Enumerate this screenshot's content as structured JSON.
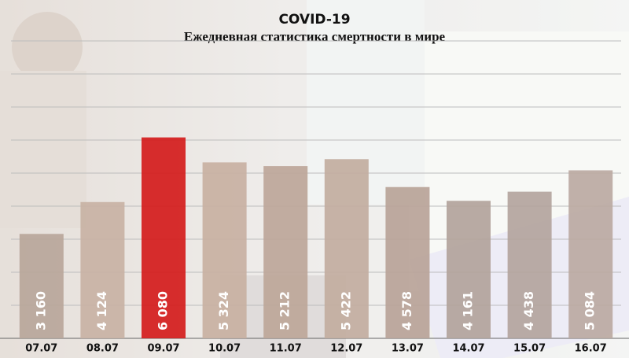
{
  "chart_data": {
    "type": "bar",
    "title": "COVID-19",
    "subtitle": "Ежедневная статистика смертности в мире",
    "categories": [
      "07.07",
      "08.07",
      "09.07",
      "10.07",
      "11.07",
      "12.07",
      "13.07",
      "14.07",
      "15.07",
      "16.07"
    ],
    "values": [
      3160,
      4124,
      6080,
      5324,
      5212,
      5422,
      4578,
      4161,
      4438,
      5084
    ],
    "value_labels": [
      "3 160",
      "4 124",
      "6 080",
      "5 324",
      "5 212",
      "5 422",
      "4 578",
      "4 161",
      "4 438",
      "5 084"
    ],
    "colors": [
      "#b8a69a",
      "#c8b2a4",
      "#d41c1c",
      "#c8b0a2",
      "#bda699",
      "#c2aca0",
      "#b8a398",
      "#b2a39b",
      "#b3a49d",
      "#bba9a2"
    ],
    "ylim": [
      0,
      9000
    ],
    "yticks": [
      1000,
      2000,
      3000,
      4000,
      5000,
      6000,
      7000,
      8000,
      9000
    ],
    "grid": true
  }
}
